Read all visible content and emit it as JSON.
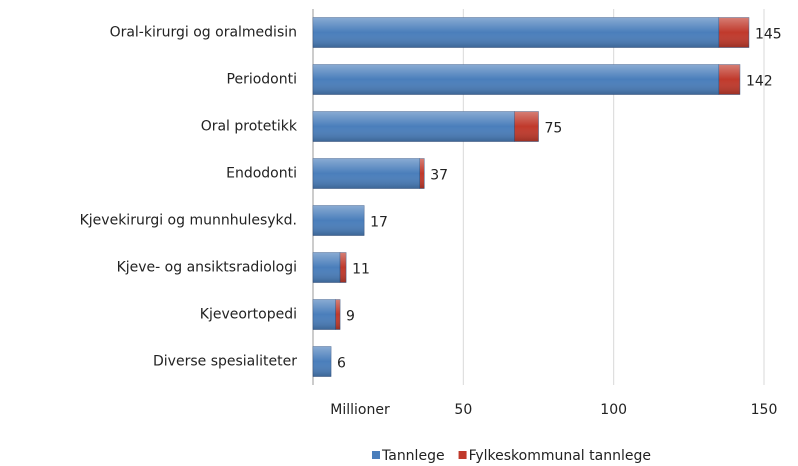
{
  "chart_data": {
    "type": "bar",
    "orientation": "horizontal",
    "stacked": true,
    "categories": [
      "Oral-kirurgi og oralmedisin",
      "Periodonti",
      "Oral protetikk",
      "Endodonti",
      "Kjevekirurgi og munnhulesykd.",
      "Kjeve- og ansiktsradiologi",
      "Kjeveortopedi",
      "Diverse spesialiteter"
    ],
    "series": [
      {
        "name": "Tannlege",
        "color": "#4a7ebb",
        "values": [
          135,
          135,
          67,
          35.5,
          17,
          9,
          7.5,
          6
        ]
      },
      {
        "name": "Fylkeskommunal tannlege",
        "color": "#c0392b",
        "values": [
          10,
          7,
          8,
          1.5,
          0,
          2,
          1.5,
          0
        ]
      }
    ],
    "total_labels": [
      145,
      142,
      75,
      37,
      17,
      11,
      9,
      6
    ],
    "x_label": "Millioner",
    "xlim": [
      0,
      150
    ],
    "xticks": [
      50,
      100,
      150
    ],
    "grid": true,
    "legend": "bottom"
  }
}
